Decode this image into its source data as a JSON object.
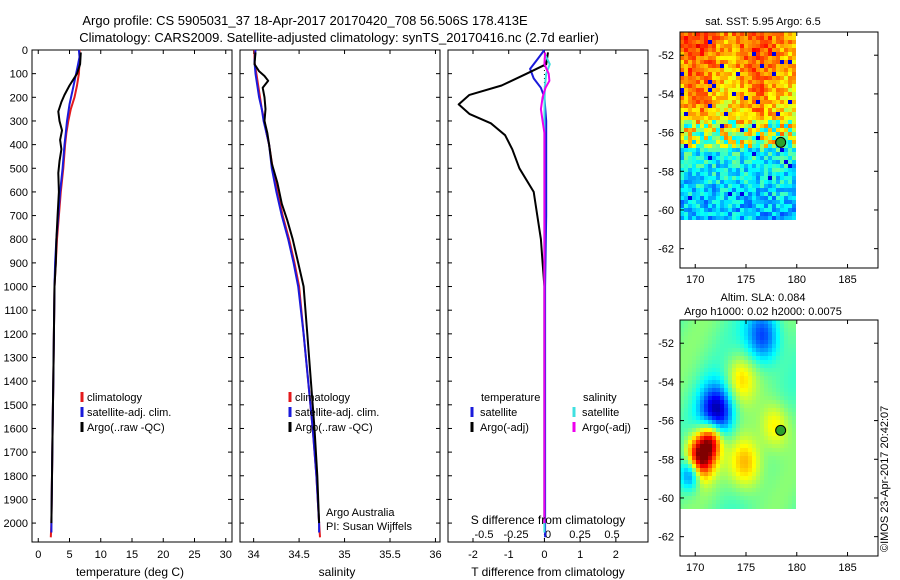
{
  "header": {
    "line1": "Argo profile: CS 5905031_37 18-Apr-2017 20170420_708 56.506S 178.413E",
    "line2": "Climatology: CARS2009. Satellite-adjusted climatology: synTS_20170416.nc (2.7d earlier)"
  },
  "credit": "©IMOS 23-Apr-2017 20:42:07",
  "colors": {
    "clim": "#e41a1c",
    "sat": "#1a1adb",
    "argo": "#000000",
    "sat_sal": "#40e0e0",
    "argo_sal": "#ee00ee"
  },
  "chart_data": [
    {
      "type": "line",
      "name": "temperature-profile",
      "xlabel": "temperature (deg C)",
      "xlim": [
        -1,
        31
      ],
      "xticks": [
        0,
        5,
        10,
        15,
        20,
        25,
        30
      ],
      "ylim": [
        0,
        2080
      ],
      "yticks": [
        0,
        100,
        200,
        300,
        400,
        500,
        600,
        700,
        800,
        900,
        1000,
        1100,
        1200,
        1300,
        1400,
        1500,
        1600,
        1700,
        1800,
        1900,
        2000
      ],
      "legend": [
        "climatology",
        "satellite-adj. clim.",
        "Argo(..raw -QC)"
      ],
      "series": [
        {
          "name": "climatology",
          "color": "clim",
          "points": [
            [
              6.6,
              0
            ],
            [
              6.6,
              50
            ],
            [
              6.5,
              100
            ],
            [
              6.2,
              150
            ],
            [
              5.8,
              200
            ],
            [
              5.2,
              250
            ],
            [
              4.8,
              300
            ],
            [
              4.5,
              350
            ],
            [
              4.3,
              400
            ],
            [
              4.0,
              500
            ],
            [
              3.6,
              600
            ],
            [
              3.3,
              700
            ],
            [
              3.0,
              800
            ],
            [
              2.8,
              900
            ],
            [
              2.6,
              1000
            ],
            [
              2.5,
              1200
            ],
            [
              2.4,
              1400
            ],
            [
              2.3,
              1600
            ],
            [
              2.2,
              1800
            ],
            [
              2.1,
              2000
            ],
            [
              2.0,
              2060
            ]
          ]
        },
        {
          "name": "satellite-adj. clim.",
          "color": "sat",
          "points": [
            [
              6.5,
              0
            ],
            [
              6.6,
              30
            ],
            [
              6.3,
              70
            ],
            [
              5.9,
              120
            ],
            [
              5.5,
              170
            ],
            [
              5.0,
              230
            ],
            [
              4.6,
              300
            ],
            [
              4.4,
              350
            ],
            [
              4.2,
              400
            ],
            [
              3.9,
              500
            ],
            [
              3.5,
              600
            ],
            [
              3.2,
              700
            ],
            [
              2.9,
              800
            ],
            [
              2.7,
              900
            ],
            [
              2.6,
              1000
            ],
            [
              2.5,
              1200
            ],
            [
              2.4,
              1400
            ],
            [
              2.3,
              1600
            ],
            [
              2.2,
              1800
            ],
            [
              2.1,
              2000
            ],
            [
              2.1,
              2040
            ]
          ]
        },
        {
          "name": "Argo(..raw -QC)",
          "color": "argo",
          "points": [
            [
              6.8,
              10
            ],
            [
              6.7,
              60
            ],
            [
              6.2,
              100
            ],
            [
              5.0,
              150
            ],
            [
              4.2,
              190
            ],
            [
              3.7,
              220
            ],
            [
              3.2,
              260
            ],
            [
              3.4,
              300
            ],
            [
              3.8,
              340
            ],
            [
              3.5,
              380
            ],
            [
              3.7,
              420
            ],
            [
              3.4,
              470
            ],
            [
              3.2,
              520
            ],
            [
              3.3,
              600
            ],
            [
              3.1,
              700
            ],
            [
              2.9,
              800
            ],
            [
              2.8,
              900
            ],
            [
              2.6,
              1000
            ],
            [
              2.5,
              1200
            ],
            [
              2.4,
              1400
            ],
            [
              2.3,
              1600
            ],
            [
              2.2,
              1800
            ],
            [
              2.1,
              2000
            ]
          ]
        }
      ]
    },
    {
      "type": "line",
      "name": "salinity-profile",
      "xlabel": "salinity",
      "xlim": [
        33.85,
        36.05
      ],
      "xticks": [
        34,
        34.5,
        35,
        35.5,
        36
      ],
      "ylim": [
        0,
        2080
      ],
      "legend": [
        "climatology",
        "satellite-adj. clim.",
        "Argo(..raw -QC)"
      ],
      "annotation": [
        "Argo Australia",
        "PI: Susan Wijffels"
      ],
      "series": [
        {
          "name": "climatology",
          "color": "clim",
          "points": [
            [
              34.01,
              0
            ],
            [
              34.01,
              50
            ],
            [
              34.03,
              100
            ],
            [
              34.05,
              150
            ],
            [
              34.07,
              200
            ],
            [
              34.09,
              250
            ],
            [
              34.12,
              300
            ],
            [
              34.14,
              350
            ],
            [
              34.17,
              400
            ],
            [
              34.21,
              500
            ],
            [
              34.26,
              600
            ],
            [
              34.32,
              700
            ],
            [
              34.39,
              800
            ],
            [
              34.45,
              900
            ],
            [
              34.5,
              1000
            ],
            [
              34.55,
              1200
            ],
            [
              34.6,
              1400
            ],
            [
              34.65,
              1600
            ],
            [
              34.69,
              1800
            ],
            [
              34.72,
              2000
            ],
            [
              34.73,
              2060
            ]
          ]
        },
        {
          "name": "satellite-adj. clim.",
          "color": "sat",
          "points": [
            [
              34.02,
              0
            ],
            [
              34.01,
              50
            ],
            [
              34.02,
              100
            ],
            [
              34.04,
              150
            ],
            [
              34.06,
              200
            ],
            [
              34.09,
              250
            ],
            [
              34.11,
              300
            ],
            [
              34.14,
              350
            ],
            [
              34.17,
              400
            ],
            [
              34.2,
              500
            ],
            [
              34.25,
              600
            ],
            [
              34.31,
              700
            ],
            [
              34.38,
              800
            ],
            [
              34.44,
              900
            ],
            [
              34.49,
              1000
            ],
            [
              34.55,
              1200
            ],
            [
              34.6,
              1400
            ],
            [
              34.65,
              1600
            ],
            [
              34.69,
              1800
            ],
            [
              34.72,
              2000
            ],
            [
              34.72,
              2040
            ]
          ]
        },
        {
          "name": "Argo(..raw -QC)",
          "color": "argo",
          "points": [
            [
              34.02,
              10
            ],
            [
              34.01,
              60
            ],
            [
              34.06,
              90
            ],
            [
              34.12,
              110
            ],
            [
              34.16,
              130
            ],
            [
              34.1,
              160
            ],
            [
              34.12,
              200
            ],
            [
              34.13,
              250
            ],
            [
              34.12,
              300
            ],
            [
              34.15,
              350
            ],
            [
              34.17,
              400
            ],
            [
              34.2,
              480
            ],
            [
              34.26,
              560
            ],
            [
              34.31,
              650
            ],
            [
              34.37,
              720
            ],
            [
              34.43,
              800
            ],
            [
              34.49,
              900
            ],
            [
              34.55,
              1000
            ],
            [
              34.59,
              1200
            ],
            [
              34.63,
              1400
            ],
            [
              34.67,
              1600
            ],
            [
              34.7,
              1800
            ],
            [
              34.72,
              2000
            ]
          ]
        }
      ]
    },
    {
      "type": "line",
      "name": "difference-profile",
      "xlabel": "T difference from climatology",
      "xlabel2": "S difference from climatology",
      "xlim": [
        -2.7,
        2.9
      ],
      "xticks": [
        -2,
        -1,
        0,
        1,
        2
      ],
      "sticks": [
        {
          "v": -0.5,
          "label": "-0.5"
        },
        {
          "v": -0.25,
          "label": "-0.25"
        },
        {
          "v": 0,
          "label": "0"
        },
        {
          "v": 0.25,
          "label": "0.25"
        },
        {
          "v": 0.5,
          "label": "0.5"
        }
      ],
      "ylim": [
        0,
        2080
      ],
      "legend_t": [
        "temperature",
        "satellite",
        "Argo(-adj)"
      ],
      "legend_s": [
        "salinity",
        "satellite",
        "Argo(-adj)"
      ],
      "series": [
        {
          "name": "T satellite",
          "color": "sat",
          "points": [
            [
              0,
              0
            ],
            [
              -0.2,
              40
            ],
            [
              -0.4,
              80
            ],
            [
              -0.3,
              120
            ],
            [
              -0.1,
              160
            ],
            [
              0,
              200
            ],
            [
              0.05,
              300
            ],
            [
              0.05,
              500
            ],
            [
              0.05,
              700
            ],
            [
              0.02,
              1000
            ],
            [
              0.02,
              1500
            ],
            [
              0.02,
              2000
            ],
            [
              0.02,
              2060
            ]
          ]
        },
        {
          "name": "T Argo(-adj)",
          "color": "argo",
          "points": [
            [
              0.1,
              10
            ],
            [
              0.05,
              60
            ],
            [
              -0.5,
              100
            ],
            [
              -1.2,
              150
            ],
            [
              -2.1,
              190
            ],
            [
              -2.4,
              230
            ],
            [
              -2.1,
              270
            ],
            [
              -1.5,
              310
            ],
            [
              -1.1,
              360
            ],
            [
              -0.9,
              420
            ],
            [
              -0.7,
              500
            ],
            [
              -0.3,
              600
            ],
            [
              -0.2,
              700
            ],
            [
              -0.1,
              800
            ],
            [
              -0.05,
              900
            ],
            [
              0,
              1000
            ],
            [
              0,
              1200
            ],
            [
              0,
              1400
            ],
            [
              0,
              1600
            ],
            [
              0,
              1800
            ],
            [
              0,
              2000
            ]
          ]
        },
        {
          "name": "S satellite",
          "color": "sat_sal",
          "points": [
            [
              0.02,
              20
            ],
            [
              0.15,
              60
            ],
            [
              0.05,
              100
            ],
            [
              0.01,
              160
            ],
            [
              0,
              300
            ],
            [
              0,
              600
            ],
            [
              0,
              1000
            ],
            [
              0,
              1400
            ],
            [
              0,
              1800
            ],
            [
              0,
              2040
            ]
          ]
        },
        {
          "name": "S Argo(-adj)",
          "color": "argo_sal",
          "points": [
            [
              0.02,
              10
            ],
            [
              0,
              60
            ],
            [
              0.12,
              100
            ],
            [
              0.14,
              130
            ],
            [
              0.03,
              160
            ],
            [
              -0.05,
              200
            ],
            [
              -0.1,
              250
            ],
            [
              -0.05,
              300
            ],
            [
              0,
              350
            ],
            [
              0,
              400
            ],
            [
              0,
              500
            ],
            [
              0,
              700
            ],
            [
              0,
              1000
            ],
            [
              0,
              1400
            ],
            [
              0,
              1800
            ],
            [
              0,
              2000
            ]
          ]
        }
      ]
    },
    {
      "type": "heatmap",
      "name": "sst-map",
      "title": "sat. SST: 5.95 Argo: 6.5",
      "xlim": [
        168.5,
        188
      ],
      "xticks": [
        170,
        175,
        180,
        185
      ],
      "ylim": [
        -63,
        -50.8
      ],
      "yticks": [
        -52,
        -54,
        -56,
        -58,
        -60,
        -62
      ],
      "marker": [
        178.413,
        -56.506
      ]
    },
    {
      "type": "heatmap",
      "name": "sla-map",
      "title": "Altim. SLA: 0.084",
      "subtitle": "Argo h1000: 0.02 h2000: 0.0075",
      "xlim": [
        168.5,
        188
      ],
      "xticks": [
        170,
        175,
        180,
        185
      ],
      "ylim": [
        -63,
        -50.8
      ],
      "yticks": [
        -52,
        -54,
        -56,
        -58,
        -60,
        -62
      ],
      "marker": [
        178.413,
        -56.506
      ]
    }
  ]
}
